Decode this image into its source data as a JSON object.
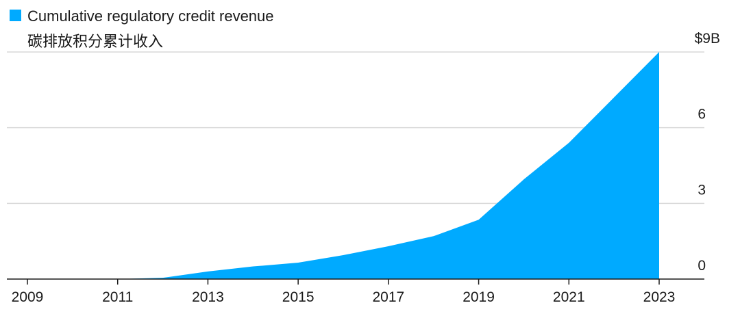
{
  "chart_data": {
    "type": "area",
    "title": "",
    "xlabel": "",
    "ylabel": "",
    "legend": {
      "position": "top-left",
      "entries": [
        {
          "label": "Cumulative regulatory credit revenue",
          "label_zh": "碳排放积分累计收入",
          "color": "#00aaff"
        }
      ]
    },
    "grid": true,
    "x": [
      2009,
      2010,
      2011,
      2012,
      2013,
      2014,
      2015,
      2016,
      2017,
      2018,
      2019,
      2020,
      2021,
      2022,
      2023
    ],
    "series": [
      {
        "name": "Cumulative regulatory credit revenue",
        "color": "#00aaff",
        "values": [
          0.0,
          0.0,
          0.0,
          0.05,
          0.3,
          0.5,
          0.65,
          0.95,
          1.3,
          1.7,
          2.35,
          3.95,
          5.4,
          7.2,
          9.0
        ]
      }
    ],
    "xlim": [
      2009,
      2023
    ],
    "ylim": [
      0,
      9
    ],
    "x_ticks": [
      2009,
      2011,
      2013,
      2015,
      2017,
      2019,
      2021,
      2023
    ],
    "x_tick_labels": [
      "2009",
      "2011",
      "2013",
      "2015",
      "2017",
      "2019",
      "2021",
      "2023"
    ],
    "y_ticks": [
      0,
      3,
      6,
      9
    ],
    "y_tick_labels": [
      "0",
      "3",
      "6",
      "$9B"
    ]
  }
}
